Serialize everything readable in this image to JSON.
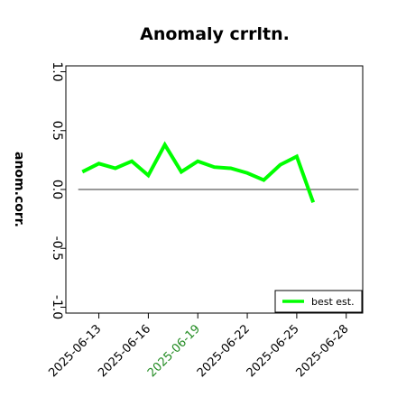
{
  "chart_data": {
    "type": "line",
    "title": "Anomaly crrltn.",
    "xlabel": "",
    "ylabel": "anom.corr.",
    "x": [
      "2025-06-12",
      "2025-06-13",
      "2025-06-14",
      "2025-06-15",
      "2025-06-16",
      "2025-06-17",
      "2025-06-18",
      "2025-06-19",
      "2025-06-20",
      "2025-06-21",
      "2025-06-22",
      "2025-06-23",
      "2025-06-24",
      "2025-06-25",
      "2025-06-26"
    ],
    "series": [
      {
        "name": "best est.",
        "color": "#00ff00",
        "values": [
          0.15,
          0.22,
          0.18,
          0.24,
          0.12,
          0.38,
          0.15,
          0.24,
          0.19,
          0.18,
          0.14,
          0.08,
          0.21,
          0.28,
          -0.11
        ]
      }
    ],
    "xticks": [
      "2025-06-13",
      "2025-06-16",
      "2025-06-19",
      "2025-06-22",
      "2025-06-25",
      "2025-06-28"
    ],
    "xtick_colors": [
      "#000000",
      "#000000",
      "#228b22",
      "#000000",
      "#000000",
      "#000000"
    ],
    "yticks": [
      -1.0,
      -0.5,
      0.0,
      0.5,
      1.0
    ],
    "ytick_labels": [
      "-1.0",
      "-0.5",
      "0.0",
      "0.5",
      "1.0"
    ],
    "ylim": [
      -1.05,
      1.05
    ],
    "xlim": [
      "2025-06-11",
      "2025-06-29"
    ],
    "reference_line": 0,
    "reference_line_range": [
      "2025-06-11T18:00",
      "2025-06-28T18:00"
    ],
    "legend_position": "bottom-right",
    "grid": false
  }
}
